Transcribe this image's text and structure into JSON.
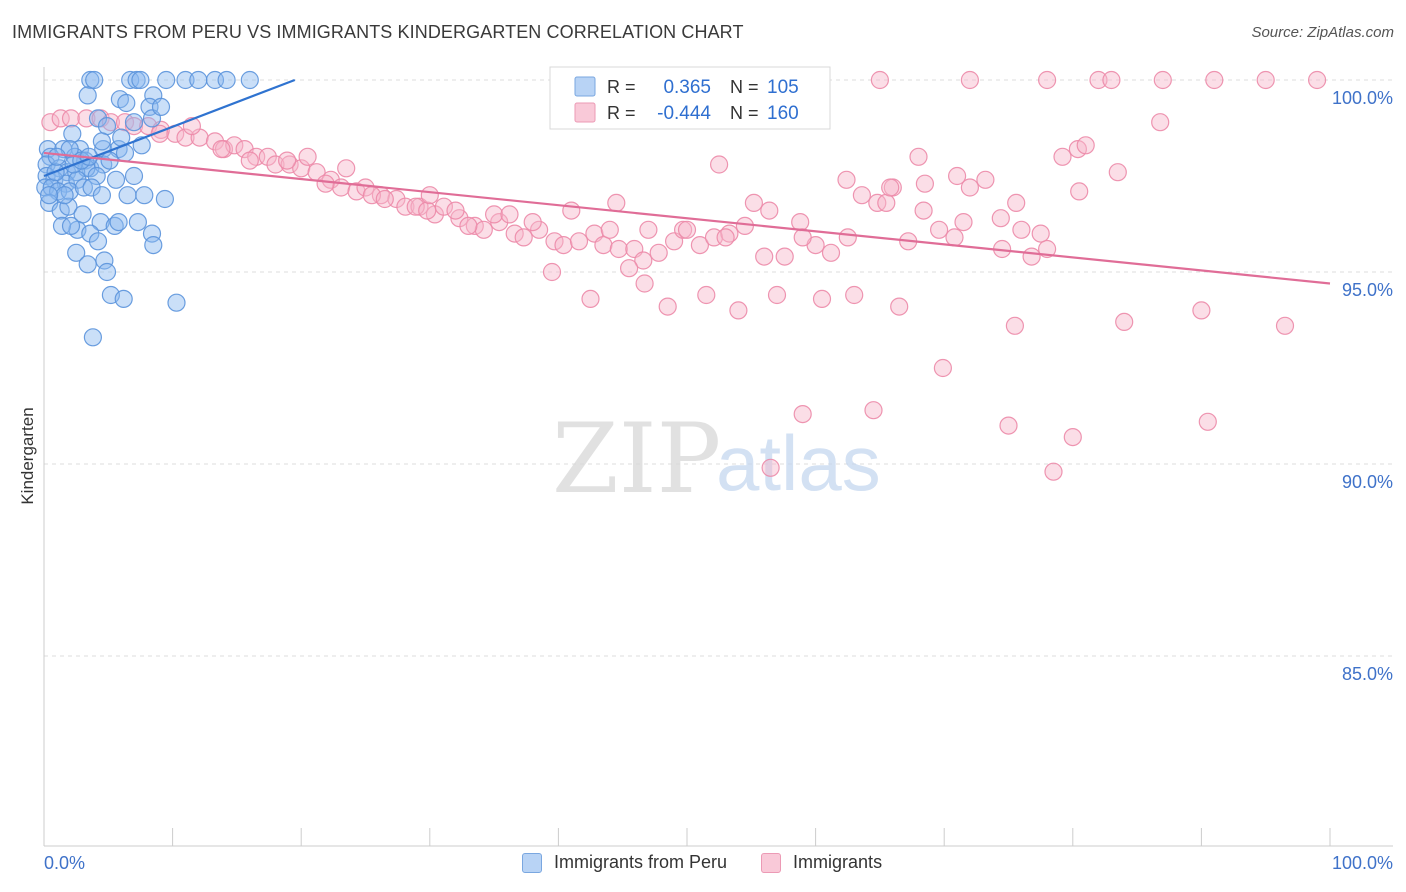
{
  "header": {
    "title": "IMMIGRANTS FROM PERU VS IMMIGRANTS KINDERGARTEN CORRELATION CHART",
    "source": "Source: ZipAtlas.com"
  },
  "watermark": {
    "zip": "ZIP",
    "atlas": "atlas"
  },
  "chart_data": {
    "type": "scatter",
    "title": "IMMIGRANTS FROM PERU VS IMMIGRANTS KINDERGARTEN CORRELATION CHART",
    "xlabel": "",
    "ylabel": "Kindergarten",
    "xlim": [
      0,
      100
    ],
    "ylim": [
      80.5,
      100.6
    ],
    "x_tick_labels": [
      "0.0%",
      "100.0%"
    ],
    "y_ticks": [
      {
        "value": 100,
        "label": "100.0%"
      },
      {
        "value": 95,
        "label": "95.0%"
      },
      {
        "value": 90,
        "label": "90.0%"
      },
      {
        "value": 85,
        "label": "85.0%"
      }
    ],
    "grid": "horizontal dashed",
    "legend_stats": [
      {
        "r_label": "R =",
        "r_value": "0.365",
        "n_label": "N =",
        "n_value": "105"
      },
      {
        "r_label": "R =",
        "r_value": "-0.444",
        "n_label": "N =",
        "n_value": "160"
      }
    ],
    "series": [
      {
        "name": "Immigrants from Peru",
        "color": "#8ab8ef",
        "stroke": "#5b93dc",
        "line_color": "#2f73d0",
        "trend": {
          "x": [
            0,
            19.5
          ],
          "y": [
            97.5,
            100.0
          ]
        },
        "points": [
          [
            3.6,
            100
          ],
          [
            3.9,
            100
          ],
          [
            6.7,
            100
          ],
          [
            7.2,
            100
          ],
          [
            7.5,
            100
          ],
          [
            9.5,
            100
          ],
          [
            11,
            100
          ],
          [
            12,
            100
          ],
          [
            13.3,
            100
          ],
          [
            14.2,
            100
          ],
          [
            16,
            100
          ],
          [
            3.4,
            99.6
          ],
          [
            5.9,
            99.5
          ],
          [
            6.4,
            99.4
          ],
          [
            8.5,
            99.6
          ],
          [
            8.2,
            99.3
          ],
          [
            4.2,
            99.0
          ],
          [
            4.9,
            98.8
          ],
          [
            0.3,
            98.2
          ],
          [
            1.5,
            98.2
          ],
          [
            2.8,
            98.2
          ],
          [
            4.6,
            98.2
          ],
          [
            5.8,
            98.2
          ],
          [
            6.3,
            98.1
          ],
          [
            0.5,
            98.0
          ],
          [
            2.4,
            98.0
          ],
          [
            3.2,
            97.9
          ],
          [
            3.6,
            97.7
          ],
          [
            0.2,
            97.8
          ],
          [
            1.2,
            97.7
          ],
          [
            1.8,
            97.6
          ],
          [
            2.5,
            97.6
          ],
          [
            3.3,
            97.7
          ],
          [
            4.6,
            97.8
          ],
          [
            0.2,
            97.5
          ],
          [
            0.8,
            97.4
          ],
          [
            1.7,
            97.3
          ],
          [
            2.6,
            97.4
          ],
          [
            4.1,
            97.5
          ],
          [
            5.6,
            97.4
          ],
          [
            0.1,
            97.2
          ],
          [
            0.6,
            97.2
          ],
          [
            1.1,
            97.1
          ],
          [
            2.0,
            97.1
          ],
          [
            3.1,
            97.2
          ],
          [
            0.4,
            96.8
          ],
          [
            1.3,
            96.6
          ],
          [
            1.9,
            96.7
          ],
          [
            3.0,
            96.5
          ],
          [
            4.4,
            96.3
          ],
          [
            7.3,
            96.3
          ],
          [
            2.6,
            96.1
          ],
          [
            5.5,
            96.2
          ],
          [
            1.4,
            96.2
          ],
          [
            3.6,
            96.0
          ],
          [
            8.4,
            96.0
          ],
          [
            4.2,
            95.8
          ],
          [
            2.5,
            95.5
          ],
          [
            4.7,
            95.3
          ],
          [
            3.4,
            95.2
          ],
          [
            4.9,
            95.0
          ],
          [
            5.2,
            94.4
          ],
          [
            6.2,
            94.3
          ],
          [
            10.3,
            94.2
          ],
          [
            3.8,
            93.3
          ],
          [
            8.4,
            99.0
          ],
          [
            9.1,
            99.3
          ],
          [
            7.0,
            98.9
          ],
          [
            2.2,
            98.6
          ],
          [
            4.5,
            98.4
          ],
          [
            2.0,
            98.2
          ],
          [
            5.1,
            97.9
          ],
          [
            7.0,
            97.5
          ],
          [
            0.9,
            97.6
          ],
          [
            2.3,
            97.8
          ],
          [
            3.7,
            97.2
          ],
          [
            6.5,
            97.0
          ],
          [
            5.8,
            96.3
          ],
          [
            4.5,
            97.0
          ],
          [
            1.6,
            97.0
          ],
          [
            0.4,
            97.0
          ],
          [
            2.9,
            97.9
          ],
          [
            1.0,
            98.0
          ],
          [
            3.5,
            98.0
          ],
          [
            7.6,
            98.3
          ],
          [
            9.4,
            96.9
          ],
          [
            8.5,
            95.7
          ],
          [
            7.8,
            97.0
          ],
          [
            2.1,
            96.2
          ],
          [
            6.0,
            98.5
          ]
        ]
      },
      {
        "name": "Immigrants",
        "color": "#f6b5c9",
        "stroke": "#ec8aa9",
        "line_color": "#e06d97",
        "trend": {
          "x": [
            0,
            100
          ],
          "y": [
            98.1,
            94.7
          ]
        },
        "points": [
          [
            65,
            100
          ],
          [
            72,
            100
          ],
          [
            78,
            100
          ],
          [
            82,
            100
          ],
          [
            83,
            100
          ],
          [
            87,
            100
          ],
          [
            91,
            100
          ],
          [
            95,
            100
          ],
          [
            99,
            100
          ],
          [
            0.5,
            98.9
          ],
          [
            1.3,
            99.0
          ],
          [
            2.1,
            99.0
          ],
          [
            3.3,
            99.0
          ],
          [
            4.4,
            99.0
          ],
          [
            5.2,
            98.9
          ],
          [
            6.3,
            98.9
          ],
          [
            7.0,
            98.8
          ],
          [
            8.1,
            98.8
          ],
          [
            9.1,
            98.7
          ],
          [
            10.2,
            98.6
          ],
          [
            11.0,
            98.5
          ],
          [
            12.1,
            98.5
          ],
          [
            13.3,
            98.4
          ],
          [
            14.0,
            98.2
          ],
          [
            14.8,
            98.3
          ],
          [
            15.6,
            98.2
          ],
          [
            16.5,
            98.0
          ],
          [
            17.4,
            98.0
          ],
          [
            18.0,
            97.8
          ],
          [
            19.1,
            97.8
          ],
          [
            20.0,
            97.7
          ],
          [
            21.2,
            97.6
          ],
          [
            22.3,
            97.4
          ],
          [
            23.1,
            97.2
          ],
          [
            24.3,
            97.1
          ],
          [
            25.0,
            97.2
          ],
          [
            26.2,
            97.0
          ],
          [
            27.4,
            96.9
          ],
          [
            28.1,
            96.7
          ],
          [
            29.2,
            96.7
          ],
          [
            30.4,
            96.5
          ],
          [
            31.1,
            96.7
          ],
          [
            32.3,
            96.4
          ],
          [
            33.5,
            96.2
          ],
          [
            34.2,
            96.1
          ],
          [
            35.4,
            96.3
          ],
          [
            36.6,
            96.0
          ],
          [
            37.3,
            95.9
          ],
          [
            38.5,
            96.1
          ],
          [
            39.7,
            95.8
          ],
          [
            40.4,
            95.7
          ],
          [
            41.6,
            95.8
          ],
          [
            42.8,
            96.0
          ],
          [
            43.5,
            95.7
          ],
          [
            44.7,
            95.6
          ],
          [
            45.9,
            95.6
          ],
          [
            46.6,
            95.3
          ],
          [
            47.8,
            95.5
          ],
          [
            49.0,
            95.8
          ],
          [
            49.7,
            96.1
          ],
          [
            51.0,
            95.7
          ],
          [
            52.1,
            95.9
          ],
          [
            53.3,
            96.0
          ],
          [
            54.5,
            96.2
          ],
          [
            55.2,
            96.8
          ],
          [
            56.4,
            96.6
          ],
          [
            57.6,
            95.4
          ],
          [
            58.8,
            96.3
          ],
          [
            60.0,
            95.7
          ],
          [
            61.2,
            95.5
          ],
          [
            62.4,
            97.4
          ],
          [
            63.6,
            97.0
          ],
          [
            64.8,
            96.8
          ],
          [
            66.0,
            97.2
          ],
          [
            67.2,
            95.8
          ],
          [
            68.4,
            96.6
          ],
          [
            69.6,
            96.1
          ],
          [
            70.8,
            95.9
          ],
          [
            72.0,
            97.2
          ],
          [
            73.2,
            97.4
          ],
          [
            74.4,
            96.4
          ],
          [
            75.6,
            96.8
          ],
          [
            76.8,
            95.4
          ],
          [
            78.0,
            95.6
          ],
          [
            79.2,
            98.0
          ],
          [
            80.4,
            98.2
          ],
          [
            81.0,
            98.3
          ],
          [
            9.0,
            98.6
          ],
          [
            11.5,
            98.8
          ],
          [
            13.8,
            98.2
          ],
          [
            16.0,
            97.9
          ],
          [
            18.9,
            97.9
          ],
          [
            21.9,
            97.3
          ],
          [
            25.5,
            97.0
          ],
          [
            28.9,
            96.7
          ],
          [
            32.0,
            96.6
          ],
          [
            35.0,
            96.5
          ],
          [
            38.0,
            96.3
          ],
          [
            41.0,
            96.6
          ],
          [
            44.0,
            96.1
          ],
          [
            47.0,
            96.1
          ],
          [
            50.0,
            96.1
          ],
          [
            53.0,
            95.9
          ],
          [
            56.0,
            95.4
          ],
          [
            59.0,
            95.9
          ],
          [
            62.5,
            95.9
          ],
          [
            65.5,
            96.8
          ],
          [
            68.5,
            97.3
          ],
          [
            71.5,
            96.3
          ],
          [
            74.5,
            95.6
          ],
          [
            77.5,
            96.0
          ],
          [
            80.5,
            97.1
          ],
          [
            20.5,
            98.0
          ],
          [
            23.5,
            97.7
          ],
          [
            26.5,
            96.9
          ],
          [
            29.8,
            96.6
          ],
          [
            33.0,
            96.2
          ],
          [
            36.2,
            96.5
          ],
          [
            39.5,
            95.0
          ],
          [
            42.5,
            94.3
          ],
          [
            45.5,
            95.1
          ],
          [
            48.5,
            94.1
          ],
          [
            51.5,
            94.4
          ],
          [
            54.0,
            94.0
          ],
          [
            57.0,
            94.4
          ],
          [
            60.5,
            94.3
          ],
          [
            63.0,
            94.4
          ],
          [
            65.8,
            97.2
          ],
          [
            71.0,
            97.5
          ],
          [
            76.0,
            96.1
          ],
          [
            30.0,
            97.0
          ],
          [
            44.5,
            96.8
          ],
          [
            46.7,
            94.7
          ],
          [
            52.5,
            97.8
          ],
          [
            69.9,
            92.5
          ],
          [
            59.0,
            91.3
          ],
          [
            64.5,
            91.4
          ],
          [
            75.0,
            91.0
          ],
          [
            90.0,
            94.0
          ],
          [
            84.0,
            93.7
          ],
          [
            90.5,
            91.1
          ],
          [
            80.0,
            90.7
          ],
          [
            56.5,
            89.9
          ],
          [
            78.5,
            89.8
          ],
          [
            66.5,
            94.1
          ],
          [
            75.5,
            93.6
          ],
          [
            96.5,
            93.6
          ],
          [
            83.5,
            97.6
          ],
          [
            68.0,
            98.0
          ],
          [
            86.8,
            98.9
          ]
        ]
      }
    ]
  }
}
